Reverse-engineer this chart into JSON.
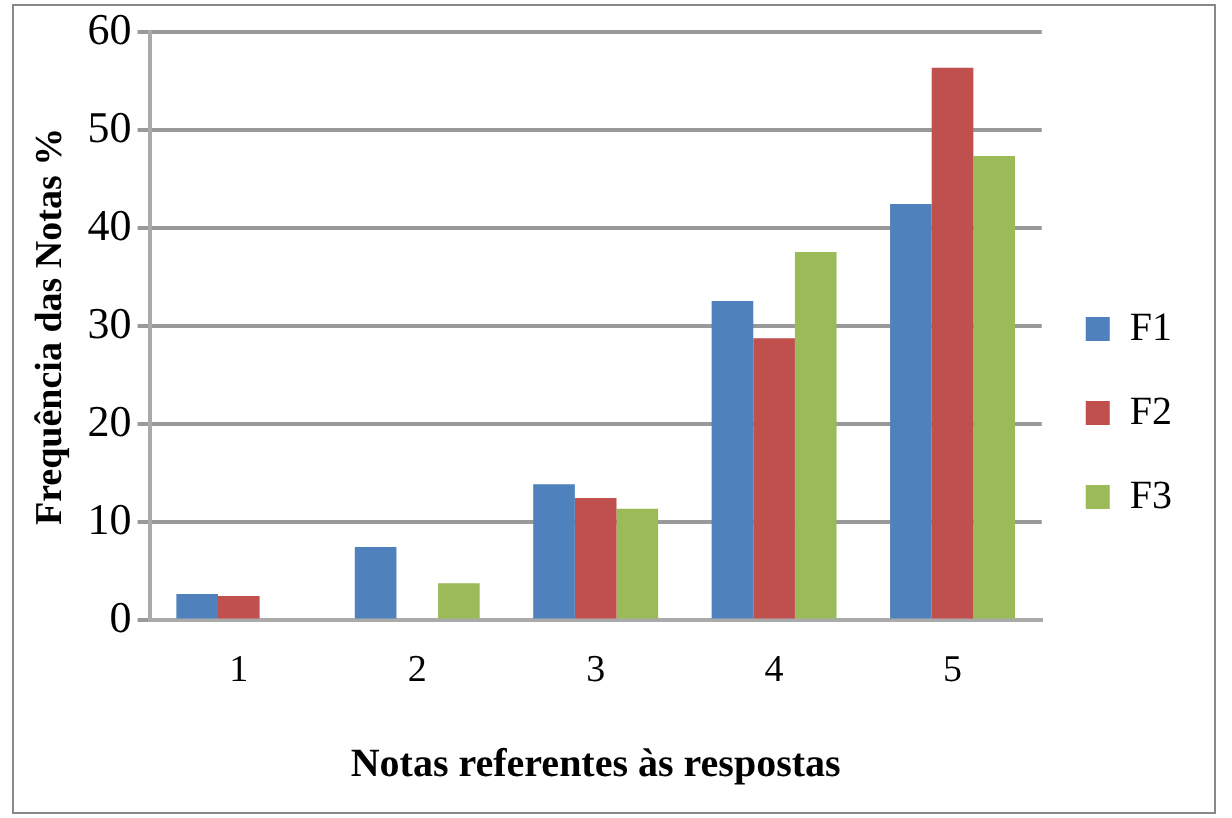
{
  "chart_data": {
    "type": "bar",
    "xlabel": "Notas referentes às respostas",
    "ylabel": "Frequência das Notas %",
    "categories": [
      "1",
      "2",
      "3",
      "4",
      "5"
    ],
    "series": [
      {
        "name": "F1",
        "color": "#4f81bd",
        "values": [
          2.7,
          7.5,
          13.9,
          32.6,
          42.5
        ]
      },
      {
        "name": "F2",
        "color": "#c0504d",
        "values": [
          2.5,
          0,
          12.5,
          28.8,
          56.4
        ]
      },
      {
        "name": "F3",
        "color": "#9bbb59",
        "values": [
          0,
          3.8,
          11.4,
          37.6,
          47.4
        ]
      }
    ],
    "ylim": [
      0,
      60
    ],
    "yticks": [
      0,
      10,
      20,
      30,
      40,
      50,
      60
    ],
    "grid": "y",
    "legend": "right"
  }
}
